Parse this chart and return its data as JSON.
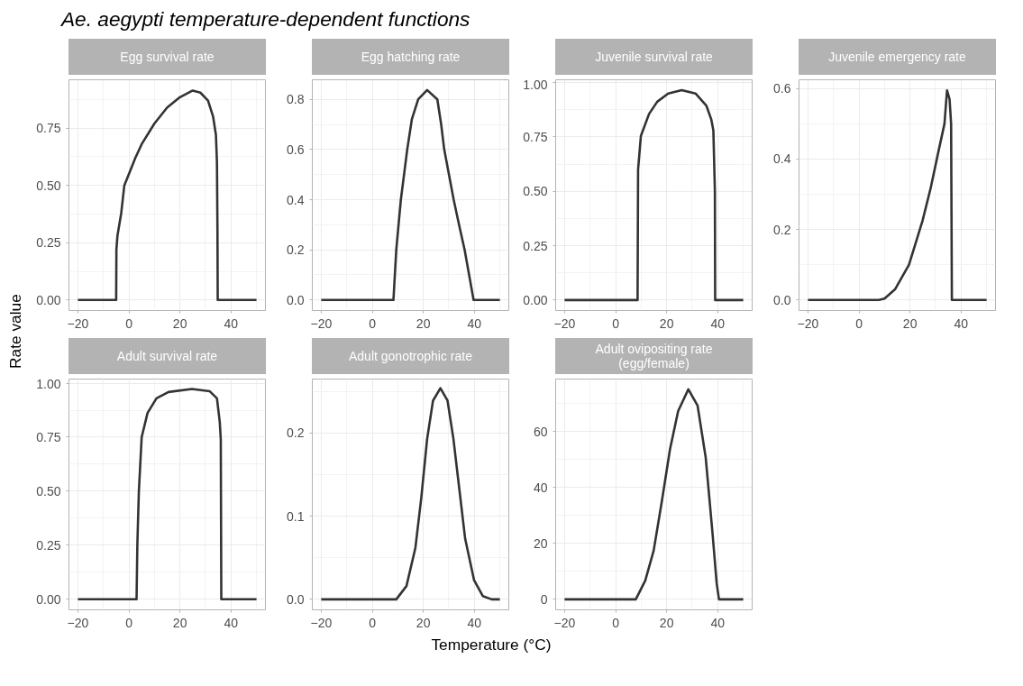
{
  "chart_data": [
    {
      "type": "line",
      "title": "Egg survival rate",
      "annotations": [
        "Ae. aegypti temperature-dependent functions"
      ],
      "ylabel": "Rate value",
      "color": "#333333",
      "grid": true,
      "xlim": [
        -23.5,
        53.5
      ],
      "xticks": [
        -20,
        0,
        20,
        40
      ],
      "ylim": [
        -0.046,
        0.961
      ],
      "yticks": [
        {
          "value": 0,
          "label": "0.00"
        },
        {
          "value": 0.25,
          "label": "0.25"
        },
        {
          "value": 0.5,
          "label": "0.50"
        },
        {
          "value": 0.75,
          "label": "0.75"
        }
      ],
      "x": [
        -20,
        -5,
        -4.9,
        -4.5,
        -3,
        -1.8,
        0,
        2.5,
        5,
        10,
        15,
        20,
        25,
        28,
        31,
        33,
        34.1,
        34.5,
        34.7,
        34.8,
        50
      ],
      "values": [
        0,
        0,
        0.22,
        0.28,
        0.38,
        0.5,
        0.55,
        0.62,
        0.68,
        0.77,
        0.84,
        0.885,
        0.914,
        0.905,
        0.87,
        0.8,
        0.72,
        0.6,
        0.3,
        0,
        0
      ]
    },
    {
      "type": "line",
      "title": "Egg hatching rate",
      "color": "#333333",
      "grid": true,
      "xlim": [
        -23.5,
        53.5
      ],
      "xticks": [
        -20,
        0,
        20,
        40
      ],
      "ylim": [
        -0.042,
        0.878
      ],
      "yticks": [
        {
          "value": 0,
          "label": "0.0"
        },
        0.2,
        0.4,
        0.6,
        0.8
      ],
      "x": [
        -20,
        8.3,
        9.4,
        11.2,
        13.7,
        15.5,
        18,
        21.5,
        25.5,
        27,
        28.2,
        31.9,
        34,
        36.2,
        39.7,
        50
      ],
      "values": [
        0,
        0,
        0.2,
        0.4,
        0.6,
        0.72,
        0.8,
        0.837,
        0.8,
        0.7,
        0.6,
        0.4,
        0.3,
        0.2,
        0,
        0
      ]
    },
    {
      "type": "line",
      "title": "Juvenile survival rate",
      "color": "#333333",
      "grid": true,
      "xlim": [
        -23.5,
        53.5
      ],
      "xticks": [
        -20,
        0,
        20,
        40
      ],
      "ylim": [
        -0.048,
        1.013
      ],
      "yticks": [
        {
          "value": 0,
          "label": "0.00"
        },
        {
          "value": 0.25,
          "label": "0.25"
        },
        {
          "value": 0.5,
          "label": "0.50"
        },
        {
          "value": 0.75,
          "label": "0.75"
        },
        {
          "value": 1,
          "label": "1.00"
        }
      ],
      "x": [
        -20,
        8.6,
        8.8,
        9.9,
        13.1,
        16.3,
        20.6,
        25.9,
        31.3,
        35.6,
        37.5,
        38.3,
        38.9,
        39,
        50
      ],
      "values": [
        0,
        0,
        0.6,
        0.755,
        0.856,
        0.912,
        0.95,
        0.965,
        0.95,
        0.893,
        0.83,
        0.78,
        0.5,
        0,
        0
      ]
    },
    {
      "type": "line",
      "title": "Juvenile emergency rate",
      "color": "#333333",
      "grid": true,
      "xlim": [
        -23.5,
        53.5
      ],
      "xticks": [
        -20,
        0,
        20,
        40
      ],
      "ylim": [
        -0.03,
        0.625
      ],
      "yticks": [
        {
          "value": 0,
          "label": "0.0"
        },
        0.2,
        0.4,
        0.6
      ],
      "x": [
        -20,
        7.8,
        10,
        14.2,
        19.6,
        24.9,
        28.1,
        31.3,
        33.5,
        34.5,
        35.5,
        36.1,
        36.4,
        50
      ],
      "values": [
        0,
        0,
        0.004,
        0.031,
        0.1,
        0.225,
        0.318,
        0.427,
        0.5,
        0.595,
        0.57,
        0.5,
        0,
        0
      ]
    },
    {
      "type": "line",
      "title": "Adult survival rate",
      "color": "#333333",
      "grid": true,
      "xlim": [
        -23.5,
        53.5
      ],
      "xticks": [
        -20,
        0,
        20,
        40
      ],
      "ylim": [
        -0.049,
        1.019
      ],
      "yticks": [
        {
          "value": 0,
          "label": "0.00"
        },
        {
          "value": 0.25,
          "label": "0.25"
        },
        {
          "value": 0.5,
          "label": "0.50"
        },
        {
          "value": 0.75,
          "label": "0.75"
        },
        {
          "value": 1,
          "label": "1.00"
        }
      ],
      "x": [
        -20,
        3,
        3.3,
        3.9,
        5,
        7.3,
        10.8,
        15.5,
        24.7,
        31.6,
        34.5,
        35.6,
        36,
        36.2,
        50
      ],
      "values": [
        0,
        0,
        0.25,
        0.5,
        0.75,
        0.862,
        0.93,
        0.959,
        0.973,
        0.963,
        0.93,
        0.82,
        0.74,
        0,
        0
      ]
    },
    {
      "type": "line",
      "title": "Adult gonotrophic rate",
      "xlabel": "Temperature (°C)",
      "color": "#333333",
      "grid": true,
      "xlim": [
        -23.5,
        53.5
      ],
      "xticks": [
        -20,
        0,
        20,
        40
      ],
      "ylim": [
        -0.0126,
        0.265
      ],
      "yticks": [
        {
          "value": 0,
          "label": "0.0"
        },
        0.1,
        0.2
      ],
      "x": [
        -20,
        9.4,
        13.4,
        16.9,
        19.2,
        21.5,
        23.8,
        26.7,
        29.5,
        31.8,
        34.1,
        36.4,
        39.9,
        43.3,
        46.8,
        50
      ],
      "values": [
        0,
        0,
        0.016,
        0.062,
        0.122,
        0.193,
        0.239,
        0.254,
        0.239,
        0.193,
        0.133,
        0.073,
        0.023,
        0.004,
        0,
        0
      ]
    },
    {
      "type": "line",
      "title": "Adult ovipositing rate\n(egg/female)",
      "color": "#333333",
      "grid": true,
      "xlim": [
        -23.5,
        53.5
      ],
      "xticks": [
        -20,
        0,
        20,
        40
      ],
      "ylim": [
        -3.75,
        78.75
      ],
      "yticks": [
        0,
        20,
        40,
        60
      ],
      "x": [
        -20,
        7.9,
        11.6,
        14.9,
        18.1,
        21.3,
        24.5,
        28.5,
        32.1,
        35.3,
        38,
        39.6,
        40.5,
        50
      ],
      "values": [
        0,
        0,
        6.7,
        17.4,
        35,
        53.6,
        67.3,
        75.1,
        69.3,
        50.7,
        23.3,
        5.7,
        0,
        0
      ]
    }
  ]
}
